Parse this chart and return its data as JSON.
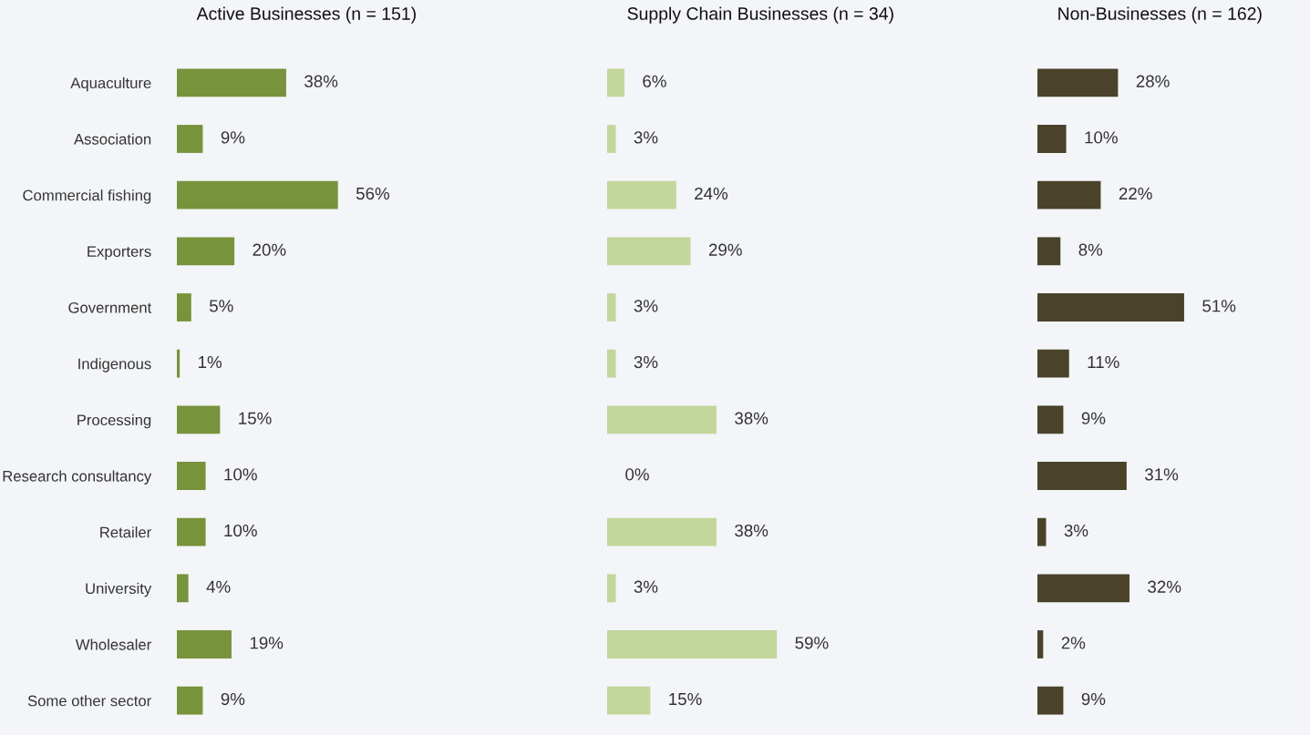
{
  "chart_data": [
    {
      "type": "bar",
      "orientation": "horizontal",
      "title": "Active Businesses (n = 151)",
      "categories": [
        "Aquaculture",
        "Association",
        "Commercial fishing",
        "Exporters",
        "Government",
        "Indigenous",
        "Processing",
        "Research consultancy",
        "Retailer",
        "University",
        "Wholesaler",
        "Some other sector"
      ],
      "values": [
        38,
        9,
        56,
        20,
        5,
        1,
        15,
        10,
        10,
        4,
        19,
        9
      ],
      "color": "#77933c",
      "value_labels": [
        "38%",
        "9%",
        "56%",
        "20%",
        "5%",
        "1%",
        "15%",
        "10%",
        "10%",
        "4%",
        "19%",
        "9%"
      ],
      "tick_labels": "y",
      "grid": false,
      "legend": false
    },
    {
      "type": "bar",
      "orientation": "horizontal",
      "title": "Supply Chain Businesses (n = 34)",
      "categories": [
        null,
        null,
        null,
        null,
        null,
        null,
        null,
        null,
        null,
        null,
        null,
        null
      ],
      "values": [
        6,
        3,
        24,
        29,
        3,
        3,
        38,
        0,
        38,
        3,
        59,
        15
      ],
      "color": "#c3d69b",
      "value_labels": [
        "6%",
        "3%",
        "24%",
        "29%",
        "3%",
        "3%",
        "38%",
        "0%",
        "38%",
        "3%",
        "59%",
        "15%"
      ],
      "tick_labels": false,
      "grid": false,
      "legend": false
    },
    {
      "type": "bar",
      "orientation": "horizontal",
      "title": "Non-Businesses (n = 162)",
      "categories": [
        null,
        null,
        null,
        null,
        null,
        null,
        null,
        null,
        null,
        null,
        null,
        null
      ],
      "values": [
        28,
        10,
        22,
        8,
        51,
        11,
        9,
        31,
        3,
        32,
        2,
        9
      ],
      "color": "#4a432a",
      "value_labels": [
        "28%",
        "10%",
        "22%",
        "8%",
        "51%",
        "11%",
        "9%",
        "31%",
        "3%",
        "32%",
        "2%",
        "9%"
      ],
      "tick_labels": false,
      "grid": false,
      "legend": false
    }
  ]
}
